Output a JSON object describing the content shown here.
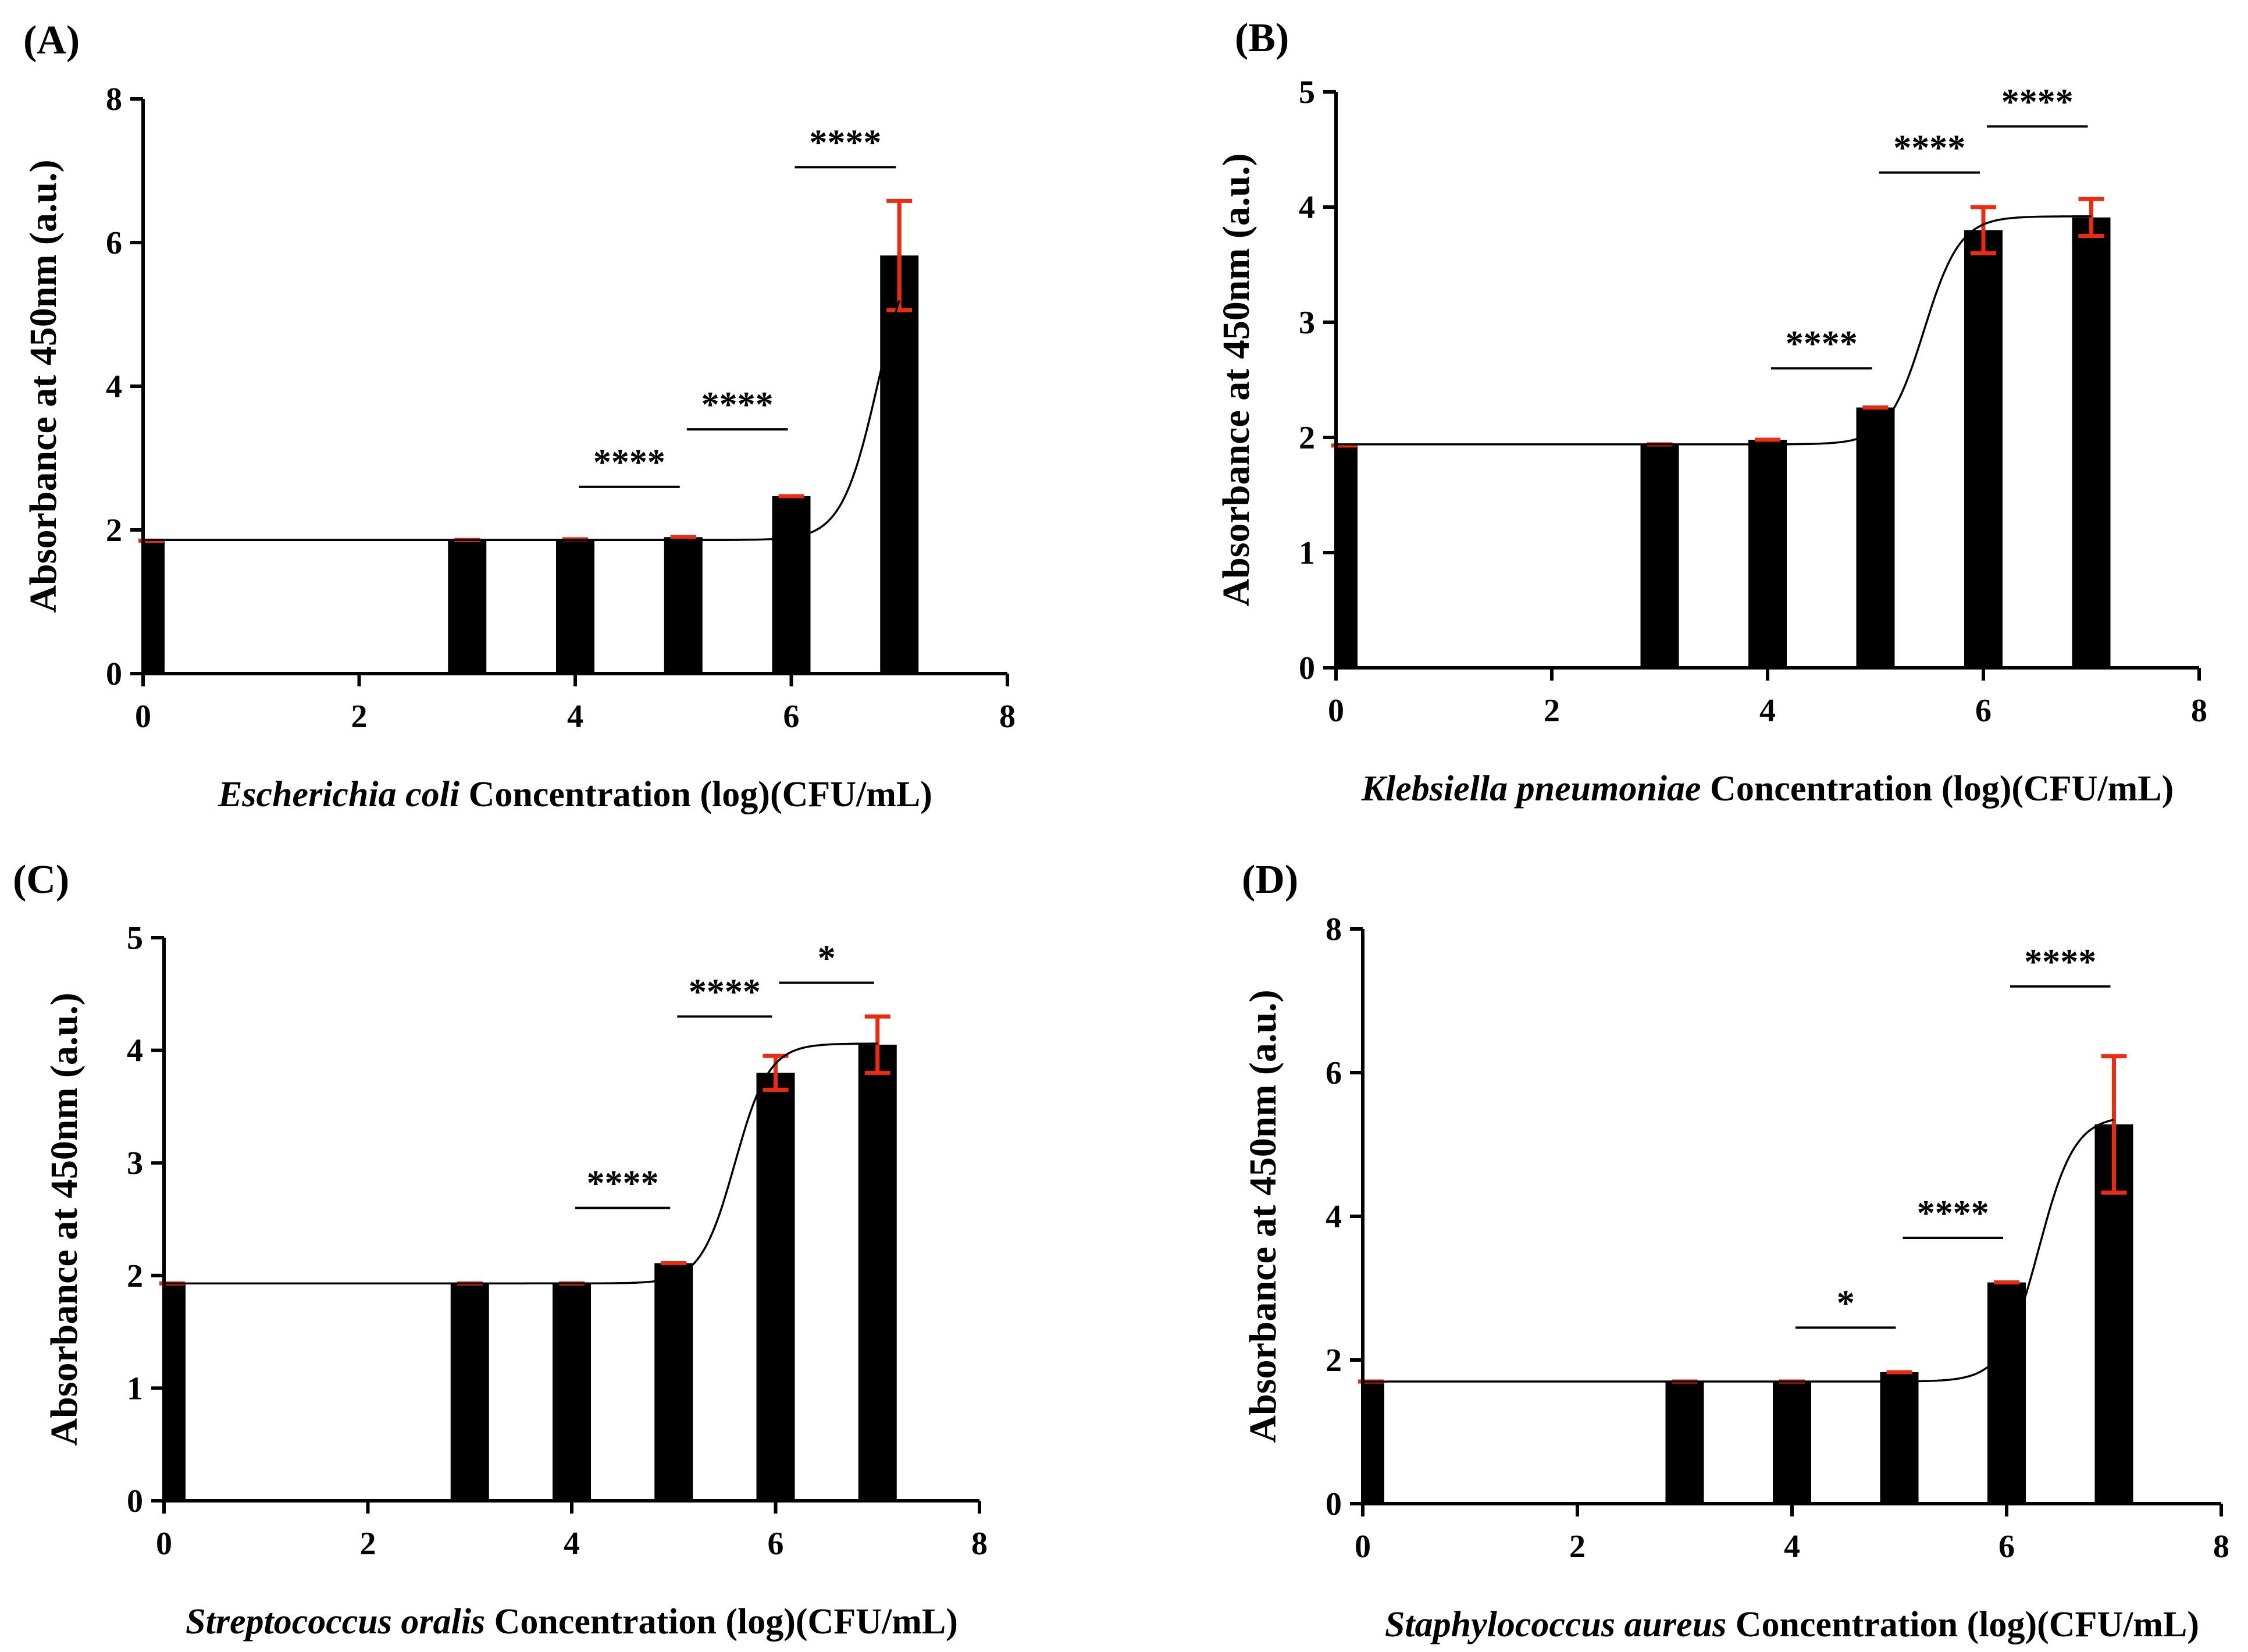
{
  "chart_data": [
    {
      "type": "bar",
      "panel_label": "(A)",
      "xlabel_italic": "Escherichia coli",
      "xlabel_rest": " Concentration (log)(CFU/mL)",
      "ylabel": "Absorbance at 450nm (a.u.)",
      "xlim": [
        0,
        8
      ],
      "xticks": [
        0,
        2,
        4,
        6,
        8
      ],
      "ylim": [
        0,
        8
      ],
      "yticks": [
        0,
        2,
        4,
        6,
        8
      ],
      "x": [
        0,
        3,
        4,
        5,
        6,
        7
      ],
      "values": [
        1.85,
        1.86,
        1.87,
        1.9,
        2.47,
        5.82
      ],
      "errors": [
        0.05,
        0.02,
        0.02,
        0.03,
        0.03,
        0.76
      ],
      "significance": [
        {
          "x1": 4,
          "x2": 5,
          "y": 2.6,
          "label": "****"
        },
        {
          "x1": 5,
          "x2": 6,
          "y": 3.4,
          "label": "****"
        },
        {
          "x1": 6,
          "x2": 7,
          "y": 7.05,
          "label": "****"
        }
      ],
      "fit": {
        "bottom": 1.86,
        "top": 6.2,
        "logEC50": 6.8,
        "hill": 2.6
      }
    },
    {
      "type": "bar",
      "panel_label": "(B)",
      "xlabel_italic": "Klebsiella pneumoniae",
      "xlabel_rest": " Concentration (log)(CFU/mL)",
      "ylabel": "Absorbance at 450nm (a.u.)",
      "xlim": [
        0,
        8
      ],
      "xticks": [
        0,
        2,
        4,
        6,
        8
      ],
      "ylim": [
        0,
        5
      ],
      "yticks": [
        0,
        1,
        2,
        3,
        4,
        5
      ],
      "x": [
        0,
        3,
        4,
        5,
        6,
        7
      ],
      "values": [
        1.93,
        1.94,
        1.98,
        2.26,
        3.8,
        3.91
      ],
      "errors": [
        0.02,
        0.02,
        0.02,
        0.03,
        0.2,
        0.16
      ],
      "significance": [
        {
          "x1": 4,
          "x2": 5,
          "y": 2.6,
          "label": "****"
        },
        {
          "x1": 5,
          "x2": 6,
          "y": 4.3,
          "label": "****"
        },
        {
          "x1": 6,
          "x2": 7,
          "y": 4.7,
          "label": "****"
        }
      ],
      "fit": {
        "bottom": 1.94,
        "top": 3.92,
        "logEC50": 5.45,
        "hill": 2.6
      }
    },
    {
      "type": "bar",
      "panel_label": "(C)",
      "xlabel_italic": "Streptococcus oralis",
      "xlabel_rest": " Concentration (log)(CFU/mL)",
      "ylabel": "Absorbance at 450nm (a.u.)",
      "xlim": [
        0,
        8
      ],
      "xticks": [
        0,
        2,
        4,
        6,
        8
      ],
      "ylim": [
        0,
        5
      ],
      "yticks": [
        0,
        1,
        2,
        3,
        4,
        5
      ],
      "x": [
        0,
        3,
        4,
        5,
        6,
        7
      ],
      "values": [
        1.93,
        1.93,
        1.93,
        2.11,
        3.8,
        4.05
      ],
      "errors": [
        0.02,
        0.02,
        0.02,
        0.02,
        0.15,
        0.25
      ],
      "significance": [
        {
          "x1": 4,
          "x2": 5,
          "y": 2.6,
          "label": "****"
        },
        {
          "x1": 5,
          "x2": 6,
          "y": 4.3,
          "label": "****"
        },
        {
          "x1": 6,
          "x2": 7,
          "y": 4.6,
          "label": "*"
        }
      ],
      "fit": {
        "bottom": 1.93,
        "top": 4.06,
        "logEC50": 5.6,
        "hill": 2.6
      }
    },
    {
      "type": "bar",
      "panel_label": "(D)",
      "xlabel_italic": "Staphylococcus aureus",
      "xlabel_rest": " Concentration (log)(CFU/mL)",
      "ylabel": "Absorbance at 450nm (a.u.)",
      "xlim": [
        0,
        8
      ],
      "xticks": [
        0,
        2,
        4,
        6,
        8
      ],
      "ylim": [
        0,
        8
      ],
      "yticks": [
        0,
        2,
        4,
        6,
        8
      ],
      "x": [
        0,
        3,
        4,
        5,
        6,
        7
      ],
      "values": [
        1.7,
        1.7,
        1.7,
        1.83,
        3.08,
        5.28
      ],
      "errors": [
        0.02,
        0.02,
        0.02,
        0.03,
        0.05,
        0.95
      ],
      "significance": [
        {
          "x1": 4,
          "x2": 5,
          "y": 2.45,
          "label": "*"
        },
        {
          "x1": 5,
          "x2": 6,
          "y": 3.7,
          "label": "****"
        },
        {
          "x1": 6,
          "x2": 7,
          "y": 7.2,
          "label": "****"
        }
      ],
      "fit": {
        "bottom": 1.7,
        "top": 5.4,
        "logEC50": 6.3,
        "hill": 2.6
      }
    }
  ]
}
